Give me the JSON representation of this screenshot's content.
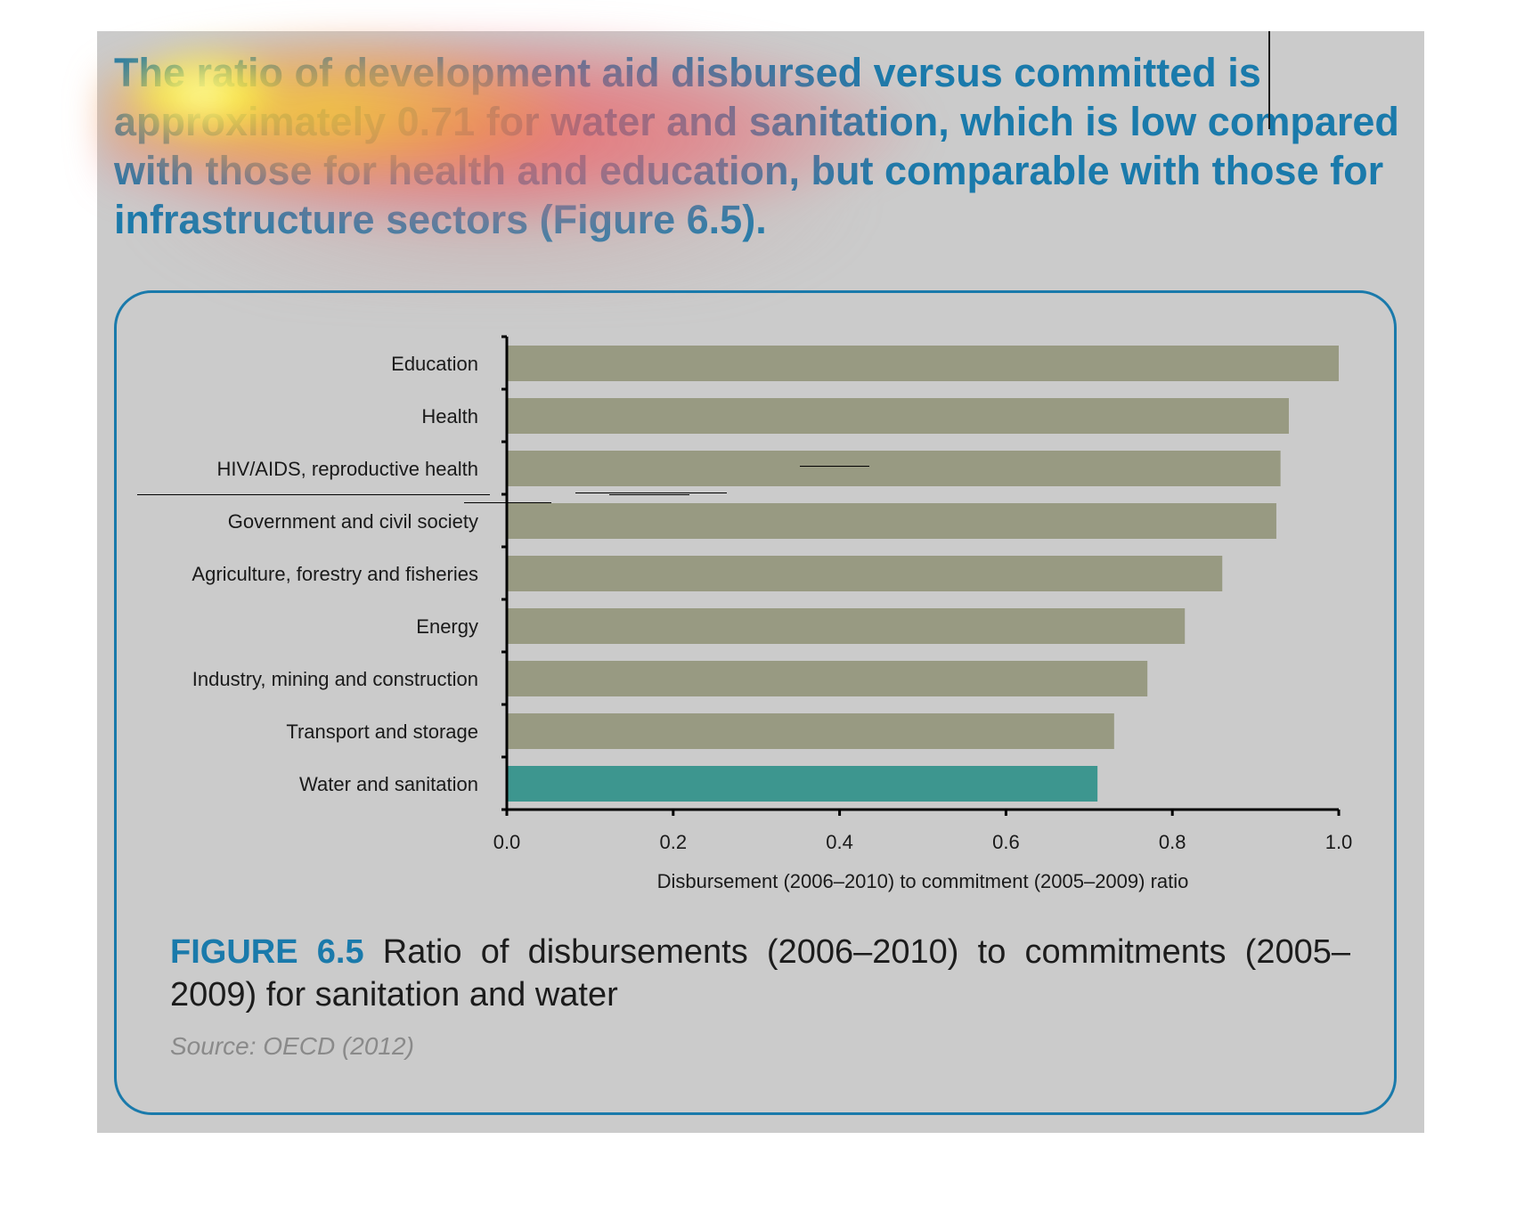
{
  "headline": "The ratio of development aid disbursed versus committed is approximately 0.71 for water and sanitation, which is low compared with those for health and education, but comparable with those for infrastructure sectors (Figure 6.5).",
  "colors": {
    "accent": "#1a7aab",
    "panel_background": "#cbcbcb",
    "bar_default": "#989a82",
    "bar_highlight": "#3d968f"
  },
  "chart_data": {
    "type": "bar",
    "orientation": "horizontal",
    "categories": [
      "Education",
      "Health",
      "HIV/AIDS, reproductive health",
      "Government and civil society",
      "Agriculture, forestry and fisheries",
      "Energy",
      "Industry, mining and construction",
      "Transport and storage",
      "Water and sanitation"
    ],
    "values": [
      1.0,
      0.94,
      0.93,
      0.925,
      0.86,
      0.815,
      0.77,
      0.73,
      0.71
    ],
    "highlight_category": "Water and sanitation",
    "xlim": [
      0.0,
      1.0
    ],
    "xticks": [
      "0.0",
      "0.2",
      "0.4",
      "0.6",
      "0.8",
      "1.0"
    ],
    "xlabel": "Disbursement (2006–2010) to commitment (2005–2009) ratio",
    "ylabel": "",
    "grid": false,
    "legend": "none"
  },
  "caption": {
    "label": "FIGURE 6.5",
    "text": " Ratio of disbursements (2006–2010) to commitments (2005–2009) for sanitation and water"
  },
  "source": "Source: OECD (2012)"
}
